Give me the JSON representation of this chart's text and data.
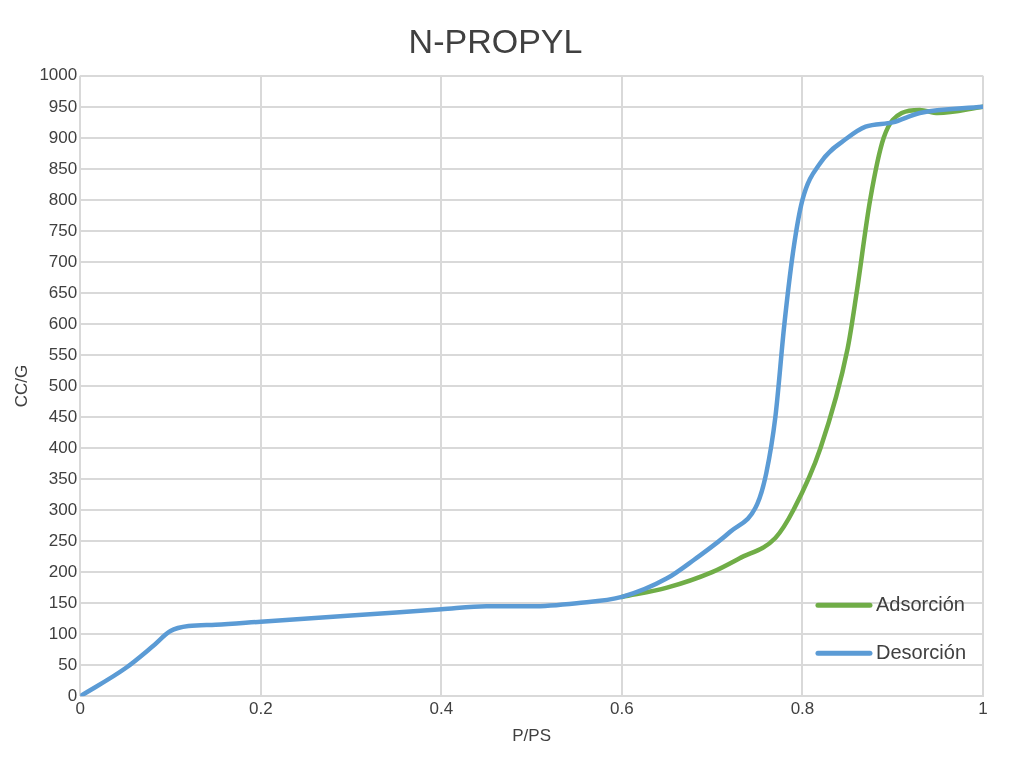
{
  "chart_data": {
    "type": "line",
    "title": "N-PROPYL",
    "xlabel": "P/PS",
    "ylabel": "CC/G",
    "xlim": [
      0,
      1
    ],
    "xticks": [
      0,
      0.2,
      0.4,
      0.6,
      0.8,
      1
    ],
    "ylim": [
      0,
      1000
    ],
    "yticks": [
      0,
      50,
      100,
      150,
      200,
      250,
      300,
      350,
      400,
      450,
      500,
      550,
      600,
      650,
      700,
      750,
      800,
      850,
      900,
      950,
      1000
    ],
    "grid": true,
    "legend": "bottom right",
    "marker": "none",
    "line_style": "solid",
    "series": [
      {
        "name": "Adsorción",
        "color": "#70ad47",
        "x": [
          0.6,
          0.65,
          0.7,
          0.73,
          0.77,
          0.79,
          0.82,
          0.85,
          0.86,
          0.875,
          0.89,
          0.91,
          0.93,
          0.95,
          1
        ],
        "values": [
          160,
          175,
          200,
          222,
          255,
          300,
          400,
          560,
          650,
          800,
          900,
          940,
          945,
          940,
          950
        ]
      },
      {
        "name": "Desorción",
        "color": "#5b9bd5",
        "x": [
          0,
          0.05,
          0.08,
          0.1,
          0.12,
          0.15,
          0.2,
          0.3,
          0.4,
          0.45,
          0.5,
          0.55,
          0.6,
          0.65,
          0.68,
          0.72,
          0.75,
          0.76,
          0.77,
          0.78,
          0.79,
          0.8,
          0.82,
          0.85,
          0.87,
          0.9,
          0.93,
          1
        ],
        "values": [
          0,
          45,
          80,
          105,
          113,
          115,
          120,
          130,
          140,
          145,
          145,
          150,
          160,
          190,
          220,
          265,
          310,
          360,
          450,
          600,
          720,
          800,
          860,
          900,
          918,
          925,
          940,
          950
        ]
      }
    ]
  }
}
